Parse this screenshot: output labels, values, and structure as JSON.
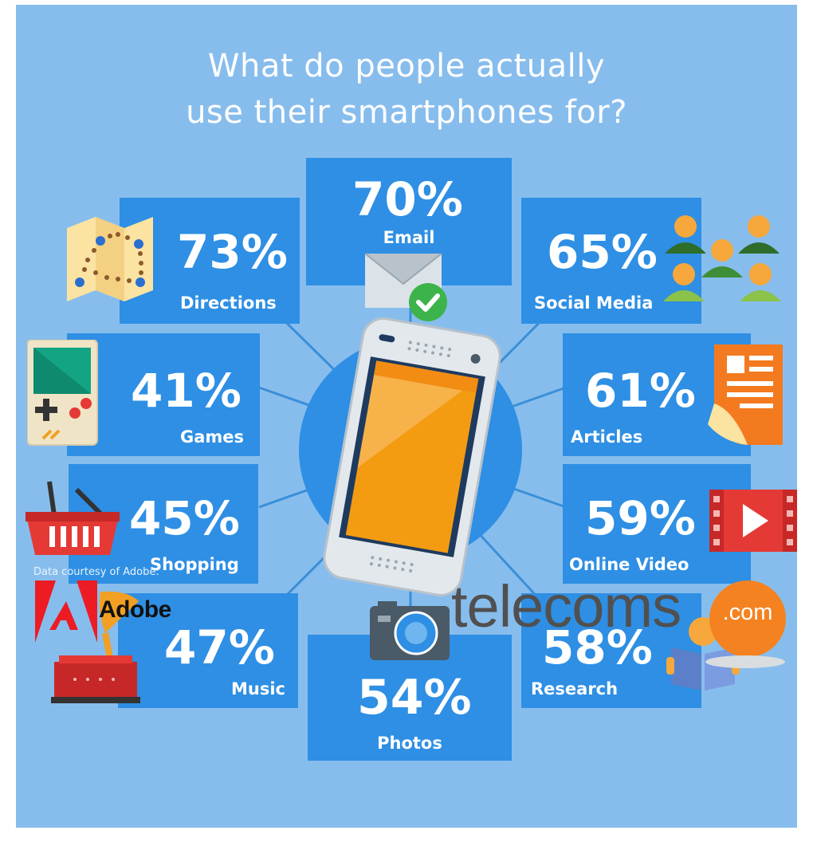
{
  "title": [
    "What do people actually",
    "use their smartphones for?"
  ],
  "stats": [
    {
      "id": "email",
      "percent": "70%",
      "label": "Email"
    },
    {
      "id": "directions",
      "percent": "73%",
      "label": "Directions"
    },
    {
      "id": "social",
      "percent": "65%",
      "label": "Social Media"
    },
    {
      "id": "games",
      "percent": "41%",
      "label": "Games"
    },
    {
      "id": "articles",
      "percent": "61%",
      "label": "Articles"
    },
    {
      "id": "shopping",
      "percent": "45%",
      "label": "Shopping"
    },
    {
      "id": "video",
      "percent": "59%",
      "label": "Online Video"
    },
    {
      "id": "music",
      "percent": "47%",
      "label": "Music"
    },
    {
      "id": "photos",
      "percent": "54%",
      "label": "Photos"
    },
    {
      "id": "research",
      "percent": "58%",
      "label": "Research"
    }
  ],
  "footer": {
    "credit": "Data courtesy of Adobe:",
    "adobe": "Adobe",
    "brand_word": "telecoms",
    "brand_suffix": ".com"
  },
  "icons": [
    "map-icon",
    "envelope-icon",
    "check-icon",
    "people-icon",
    "game-console-icon",
    "document-icon",
    "basket-icon",
    "video-play-icon",
    "gramophone-icon",
    "camera-icon",
    "reader-icon",
    "smartphone-icon",
    "adobe-logo-icon"
  ],
  "colors": {
    "background": "#87BDED",
    "card": "#2E8FE4",
    "phone_screen": "#F39C12",
    "brand_orange": "#F58220"
  }
}
